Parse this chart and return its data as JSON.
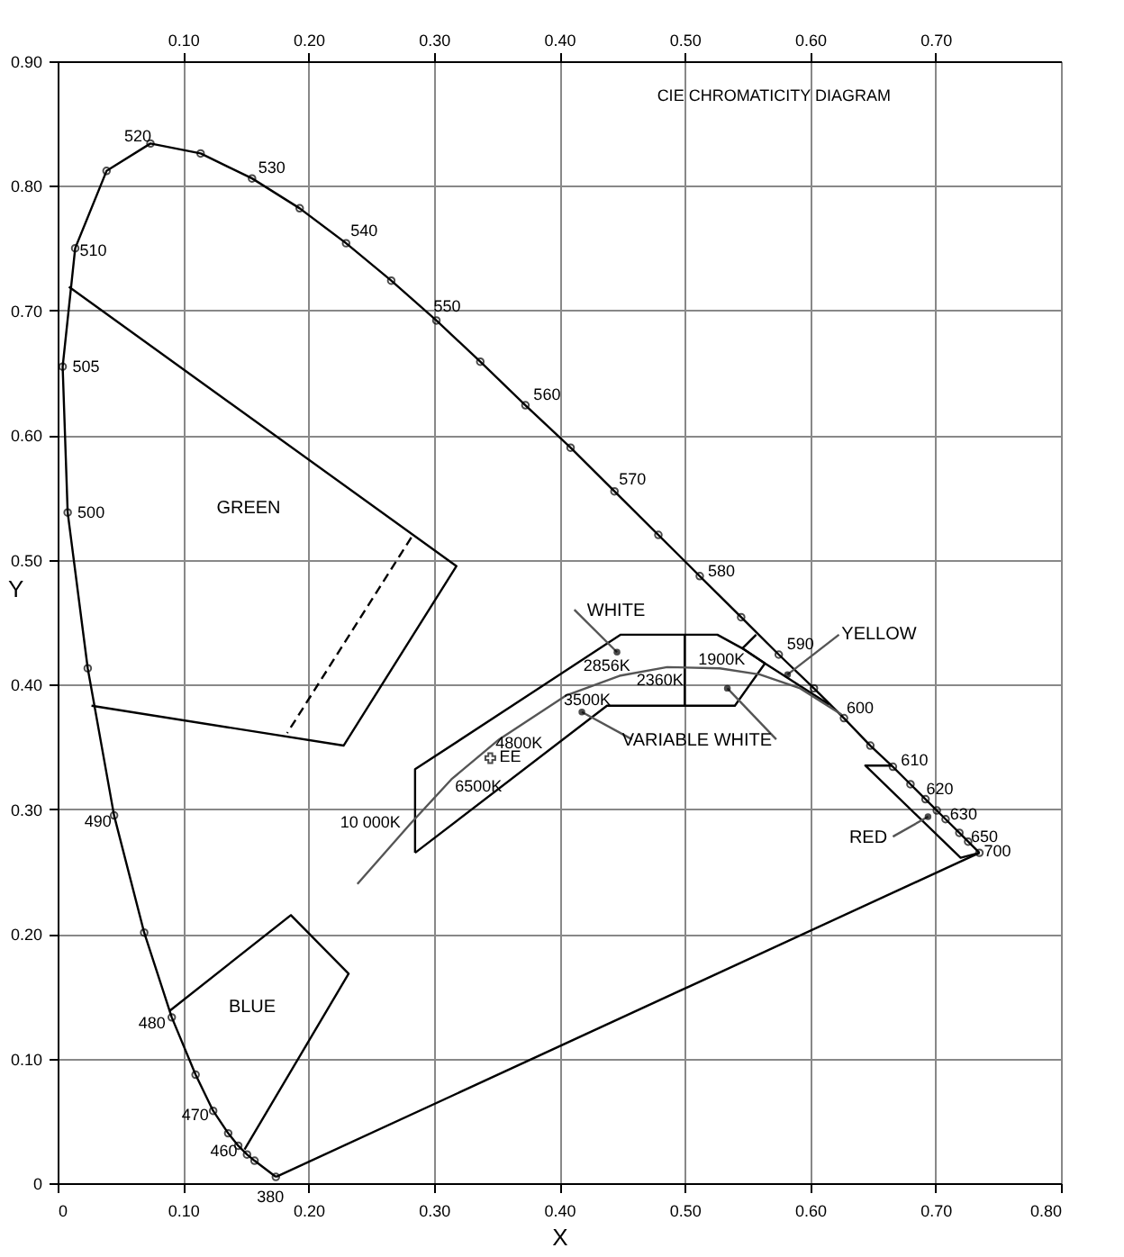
{
  "chart_data": {
    "type": "line",
    "title": "CIE CHROMATICITY DIAGRAM",
    "xlabel": "X",
    "ylabel": "Y",
    "xlim": [
      0,
      0.8
    ],
    "ylim": [
      0,
      0.9
    ],
    "xticks": [
      0,
      {
        "value": 0.1,
        "label": "0.10"
      },
      {
        "value": 0.2,
        "label": "0.20"
      },
      {
        "value": 0.3,
        "label": "0.30"
      },
      {
        "value": 0.4,
        "label": "0.40"
      },
      {
        "value": 0.5,
        "label": "0.50"
      },
      {
        "value": 0.6,
        "label": "0.60"
      },
      {
        "value": 0.7,
        "label": "0.70"
      },
      {
        "value": 0.8,
        "label": "0.80"
      }
    ],
    "x2lim": [
      0,
      0.8
    ],
    "x2ticks": [
      {
        "value": 0.1,
        "label": "0.10"
      },
      {
        "value": 0.2,
        "label": "0.20"
      },
      {
        "value": 0.3,
        "label": "0.30"
      },
      {
        "value": 0.4,
        "label": "0.40"
      },
      {
        "value": 0.5,
        "label": "0.50"
      },
      {
        "value": 0.6,
        "label": "0.60"
      },
      {
        "value": 0.7,
        "label": "0.70"
      }
    ],
    "yticks": [
      0,
      {
        "value": 0.1,
        "label": "0.10"
      },
      {
        "value": 0.2,
        "label": "0.20"
      },
      {
        "value": 0.3,
        "label": "0.30"
      },
      {
        "value": 0.4,
        "label": "0.40"
      },
      {
        "value": 0.5,
        "label": "0.50"
      },
      {
        "value": 0.6,
        "label": "0.60"
      },
      {
        "value": 0.7,
        "label": "0.70"
      },
      {
        "value": 0.8,
        "label": "0.80"
      },
      {
        "value": 0.9,
        "label": "0.90"
      }
    ],
    "grid": true,
    "series": [
      {
        "color": "#000000",
        "marker": "circle",
        "x": [
          0.174,
          0.157,
          0.151,
          0.144,
          0.136,
          0.124,
          0.11,
          0.091,
          0.069,
          0.045,
          0.024,
          0.008,
          0.004,
          0.014,
          0.039,
          0.074,
          0.114,
          0.155,
          0.193,
          0.23,
          0.266,
          0.302,
          0.337,
          0.373,
          0.409,
          0.444,
          0.479,
          0.512,
          0.545,
          0.575,
          0.603,
          0.627,
          0.648,
          0.666,
          0.68,
          0.692,
          0.701,
          0.708,
          0.719,
          0.726,
          0.735
        ],
        "values": [
          0.005,
          0.018,
          0.023,
          0.03,
          0.04,
          0.058,
          0.087,
          0.133,
          0.201,
          0.295,
          0.413,
          0.538,
          0.655,
          0.75,
          0.812,
          0.834,
          0.826,
          0.806,
          0.782,
          0.754,
          0.724,
          0.692,
          0.659,
          0.624,
          0.59,
          0.555,
          0.52,
          0.487,
          0.454,
          0.424,
          0.397,
          0.373,
          0.351,
          0.334,
          0.32,
          0.308,
          0.299,
          0.292,
          0.281,
          0.274,
          0.265
        ]
      },
      {
        "color": "#000000",
        "x": [
          0.174,
          0.735
        ],
        "values": [
          0.005,
          0.265
        ]
      },
      {
        "color": "#000000",
        "x": [
          0.009,
          0.318,
          0.228,
          0.027
        ],
        "values": [
          0.719,
          0.495,
          0.351,
          0.383
        ]
      },
      {
        "color": "#000000",
        "line_style": "dashed",
        "x": [
          0.282,
          0.183
        ],
        "values": [
          0.518,
          0.361
        ]
      },
      {
        "color": "#000000",
        "x": [
          0.089,
          0.186,
          0.232,
          0.149
        ],
        "values": [
          0.138,
          0.215,
          0.168,
          0.027
        ]
      },
      {
        "color": "#000000",
        "x": [
          0.285,
          0.285,
          0.449,
          0.526,
          0.546,
          0.564
        ],
        "values": [
          0.265,
          0.332,
          0.44,
          0.44,
          0.429,
          0.417
        ]
      },
      {
        "color": "#000000",
        "x": [
          0.564,
          0.54,
          0.438,
          0.285
        ],
        "values": [
          0.417,
          0.383,
          0.383,
          0.265
        ]
      },
      {
        "color": "#000000",
        "x": [
          0.5,
          0.5
        ],
        "values": [
          0.44,
          0.383
        ]
      },
      {
        "color": "#000000",
        "x": [
          0.557,
          0.546,
          0.564,
          0.615
        ],
        "values": [
          0.44,
          0.429,
          0.417,
          0.384
        ]
      },
      {
        "color": "#000000",
        "x": [
          0.665,
          0.644,
          0.72,
          0.735
        ],
        "values": [
          0.335,
          0.335,
          0.261,
          0.265
        ]
      },
      {
        "color": "#555555",
        "x": [
          0.239,
          0.281,
          0.314,
          0.352,
          0.405,
          0.448,
          0.486,
          0.528,
          0.56,
          0.592,
          0.625
        ],
        "values": [
          0.24,
          0.288,
          0.324,
          0.356,
          0.391,
          0.407,
          0.414,
          0.413,
          0.408,
          0.397,
          0.376
        ]
      },
      {
        "color": "#555555",
        "x": [
          0.412,
          0.446
        ],
        "values": [
          0.46,
          0.426
        ]
      },
      {
        "color": "#555555",
        "x": [
          0.623,
          0.582
        ],
        "values": [
          0.44,
          0.408
        ]
      },
      {
        "color": "#555555",
        "x": [
          0.458,
          0.418
        ],
        "values": [
          0.356,
          0.378
        ]
      },
      {
        "color": "#555555",
        "x": [
          0.573,
          0.534
        ],
        "values": [
          0.356,
          0.397
        ]
      },
      {
        "color": "#555555",
        "x": [
          0.666,
          0.694
        ],
        "values": [
          0.278,
          0.294
        ]
      },
      {
        "type": "scatter",
        "marker": "circle",
        "color": "#000000",
        "x": [
          0.446,
          0.582,
          0.418,
          0.534,
          0.694
        ],
        "values": [
          0.426,
          0.408,
          0.378,
          0.397,
          0.294
        ]
      },
      {
        "type": "scatter",
        "marker": "cross",
        "color": "#000000",
        "x": [
          0.345
        ],
        "values": [
          0.341
        ]
      }
    ],
    "annotations": [
      {
        "text": "520",
        "x": 0.074,
        "y": 0.834
      },
      {
        "text": "530",
        "x": 0.155,
        "y": 0.806
      },
      {
        "text": "540",
        "x": 0.23,
        "y": 0.754
      },
      {
        "text": "550",
        "x": 0.302,
        "y": 0.692
      },
      {
        "text": "560",
        "x": 0.373,
        "y": 0.624
      },
      {
        "text": "570",
        "x": 0.444,
        "y": 0.555
      },
      {
        "text": "580",
        "x": 0.512,
        "y": 0.487
      },
      {
        "text": "590",
        "x": 0.575,
        "y": 0.424
      },
      {
        "text": "600",
        "x": 0.627,
        "y": 0.373
      },
      {
        "text": "610",
        "x": 0.666,
        "y": 0.334
      },
      {
        "text": "620",
        "x": 0.692,
        "y": 0.308
      },
      {
        "text": "630",
        "x": 0.708,
        "y": 0.292
      },
      {
        "text": "650",
        "x": 0.726,
        "y": 0.274
      },
      {
        "text": "700",
        "x": 0.735,
        "y": 0.265
      },
      {
        "text": "510",
        "x": 0.014,
        "y": 0.75
      },
      {
        "text": "505",
        "x": 0.004,
        "y": 0.655
      },
      {
        "text": "500",
        "x": 0.008,
        "y": 0.538
      },
      {
        "text": "490",
        "x": 0.045,
        "y": 0.295
      },
      {
        "text": "480",
        "x": 0.091,
        "y": 0.133
      },
      {
        "text": "470",
        "x": 0.124,
        "y": 0.058
      },
      {
        "text": "460",
        "x": 0.144,
        "y": 0.03
      },
      {
        "text": "380",
        "x": 0.174,
        "y": 0.005
      },
      {
        "text": "2856K",
        "x": 0.448,
        "y": 0.407
      },
      {
        "text": "2360K",
        "x": 0.486,
        "y": 0.414
      },
      {
        "text": "1900K",
        "x": 0.528,
        "y": 0.413
      },
      {
        "text": "3500K",
        "x": 0.405,
        "y": 0.391
      },
      {
        "text": "4800K",
        "x": 0.352,
        "y": 0.356
      },
      {
        "text": "6500K",
        "x": 0.314,
        "y": 0.324
      },
      {
        "text": "10 000K",
        "x": 0.281,
        "y": 0.288
      },
      {
        "text": "EE",
        "x": 0.345,
        "y": 0.341
      },
      "GREEN",
      "BLUE",
      "WHITE",
      "YELLOW",
      "VARIABLE WHITE",
      "RED"
    ]
  }
}
